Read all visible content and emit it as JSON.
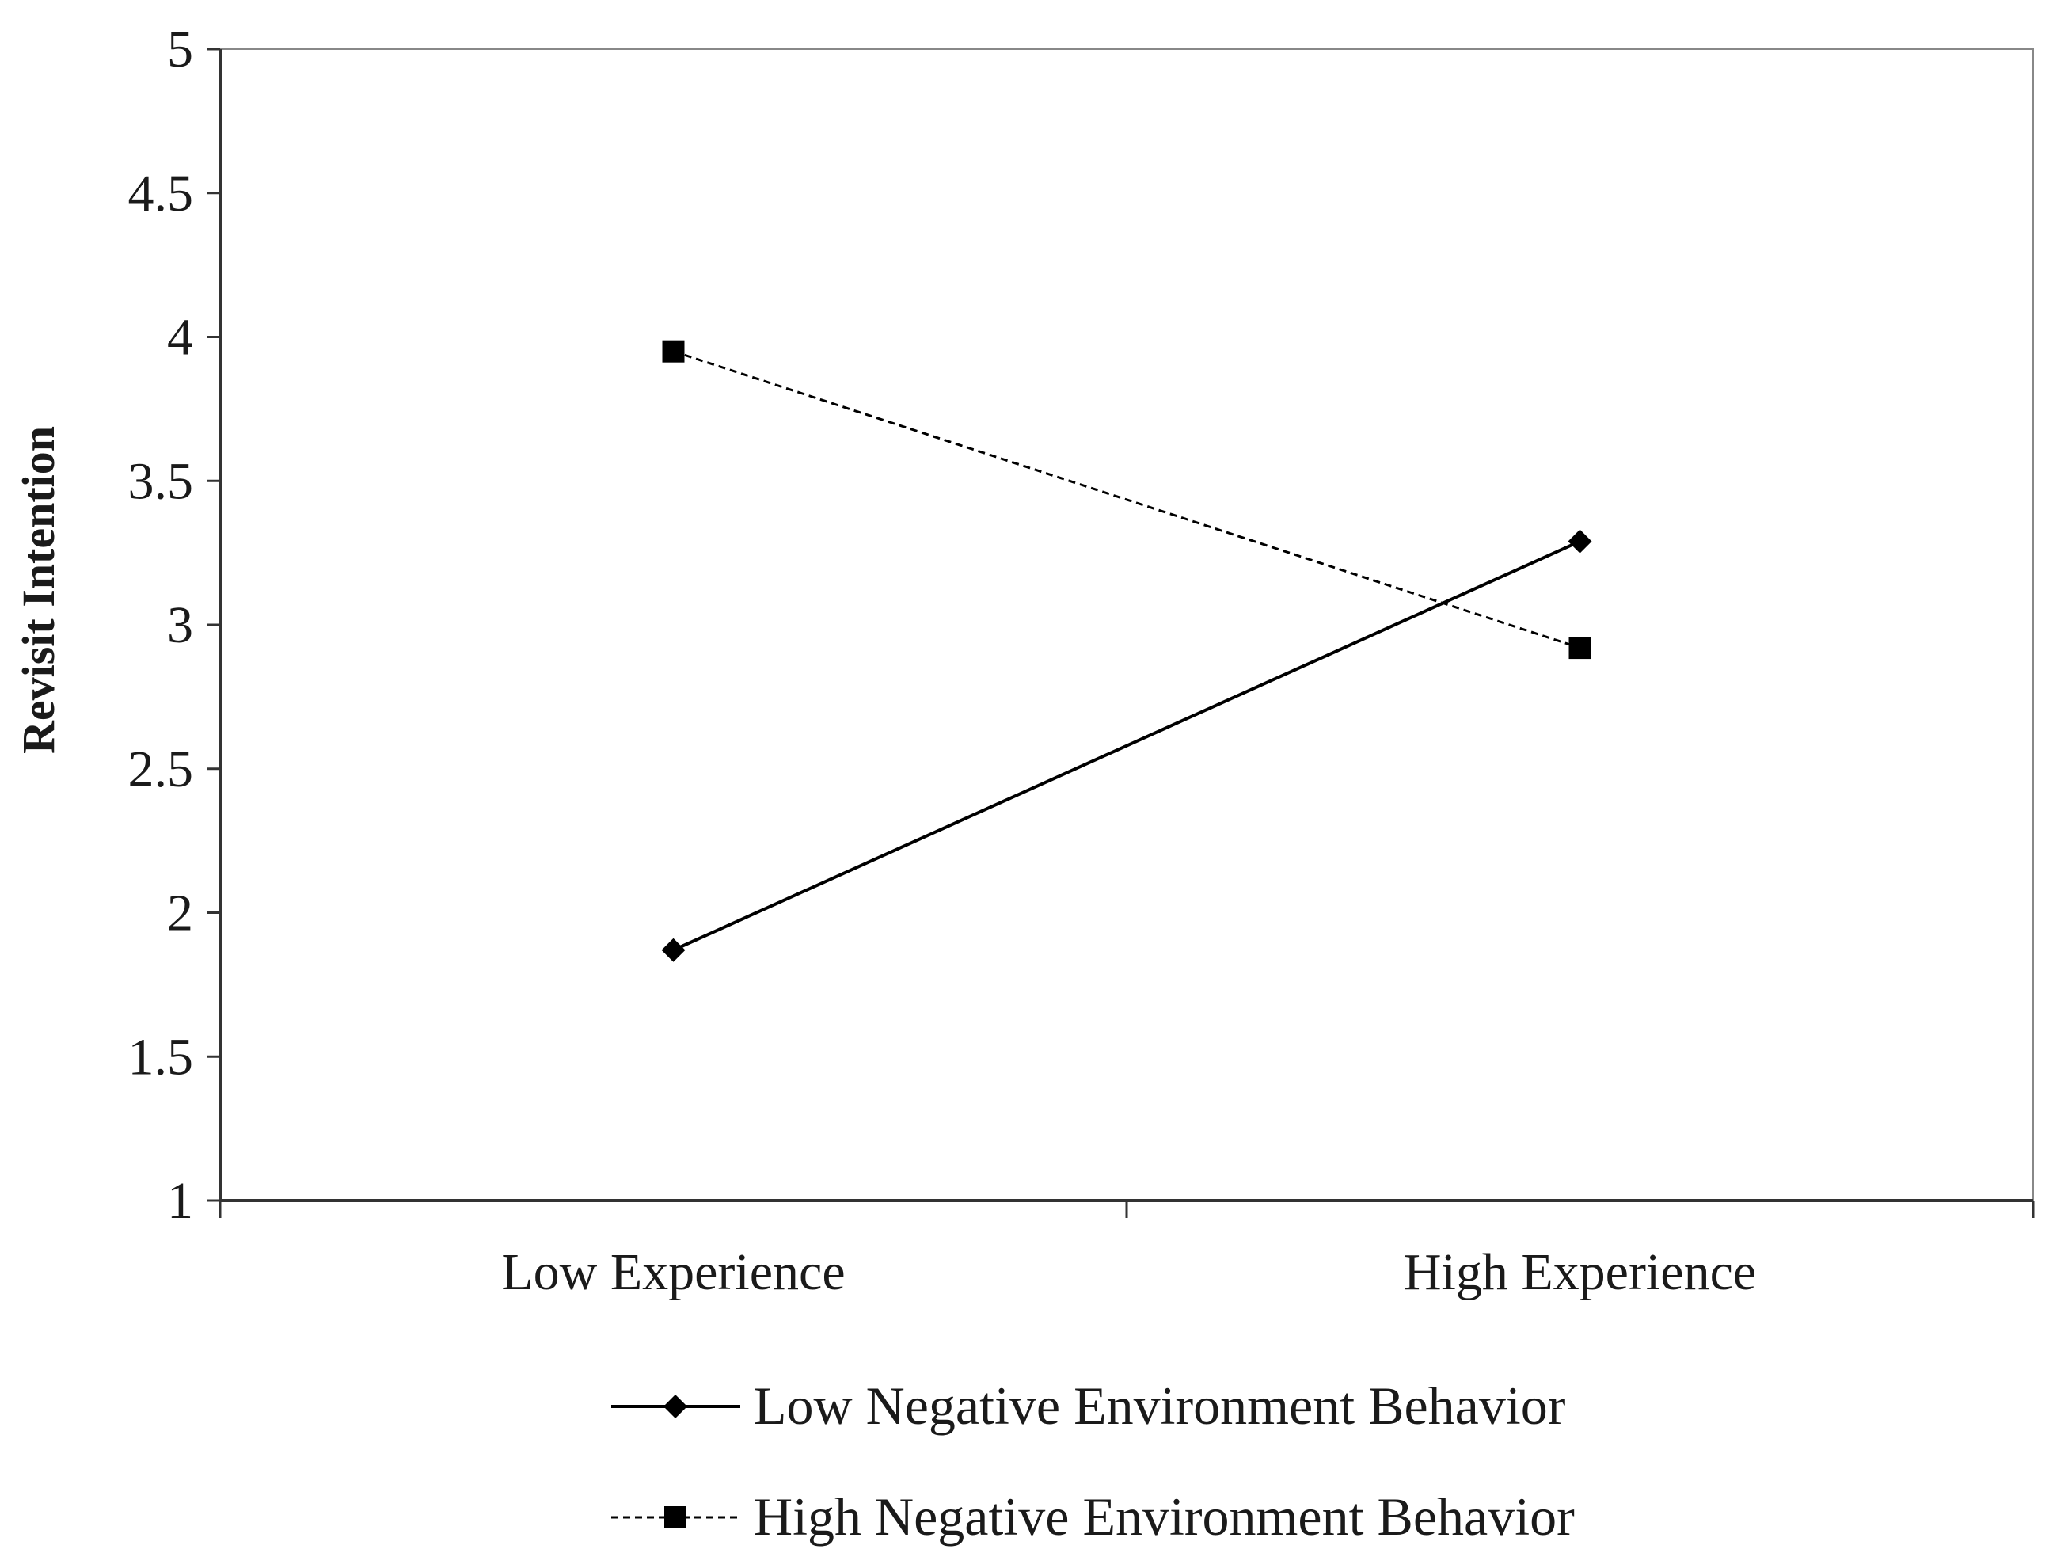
{
  "chart_data": {
    "type": "line",
    "title": "",
    "xlabel": "",
    "ylabel": "Revisit Intention",
    "categories": [
      "Low Experience",
      "High Experience"
    ],
    "ylim": [
      1,
      5
    ],
    "yticks": [
      "1",
      "1.5",
      "2",
      "2.5",
      "3",
      "3.5",
      "4",
      "4.5",
      "5"
    ],
    "grid": false,
    "legend_position": "bottom",
    "series": [
      {
        "name": "Low Negative Environment Behavior",
        "values": [
          1.87,
          3.29
        ],
        "line_style": "solid",
        "marker": "diamond",
        "color": "#000000"
      },
      {
        "name": "High Negative Environment Behavior",
        "values": [
          3.95,
          2.92
        ],
        "line_style": "dashed",
        "marker": "square",
        "color": "#000000"
      }
    ]
  }
}
